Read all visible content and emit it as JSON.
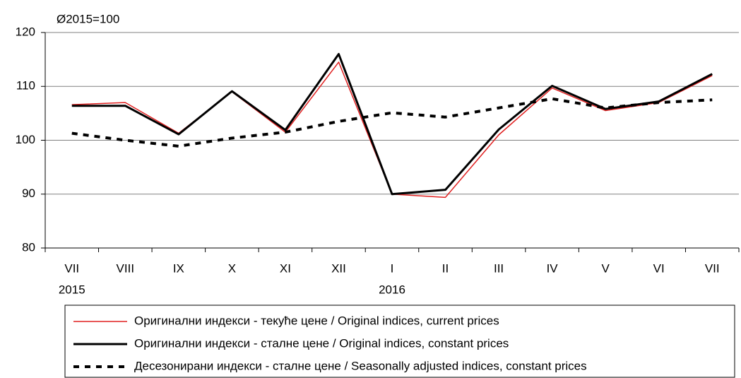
{
  "chart_data": {
    "type": "line",
    "unit_label": "Ø2015=100",
    "categories": [
      "VII",
      "VIII",
      "IX",
      "X",
      "XI",
      "XII",
      "I",
      "II",
      "III",
      "IV",
      "V",
      "VI",
      "VII"
    ],
    "year_labels": [
      "2015",
      null,
      null,
      null,
      null,
      null,
      "2016",
      null,
      null,
      null,
      null,
      null,
      null
    ],
    "series": [
      {
        "name": "Оригинални индекси - текуће цене / Original indices, current prices",
        "color": "#e02020",
        "line_style": "solid",
        "values": [
          106.6,
          107.0,
          101.3,
          109.0,
          101.5,
          114.5,
          90.0,
          89.4,
          101.0,
          109.7,
          105.5,
          107.0,
          112.0
        ]
      },
      {
        "name": "Оригинални индекси - сталне цене / Original indices, constant prices",
        "color": "#000000",
        "line_style": "solid",
        "values": [
          106.4,
          106.4,
          101.1,
          109.1,
          101.9,
          116.0,
          90.0,
          90.8,
          102.0,
          110.1,
          105.8,
          107.2,
          112.3
        ]
      },
      {
        "name": "Десезонирани индекси - сталне цене / Seasonally adjusted indices, constant prices",
        "color": "#000000",
        "line_style": "dashed",
        "values": [
          101.3,
          100.0,
          98.9,
          100.4,
          101.5,
          103.5,
          105.1,
          104.3,
          106.0,
          107.7,
          106.0,
          107.0,
          107.5
        ]
      }
    ],
    "ylim": [
      80,
      120
    ],
    "yticks": [
      80,
      90,
      100,
      110,
      120
    ],
    "grid": true,
    "legend": "bottom"
  }
}
